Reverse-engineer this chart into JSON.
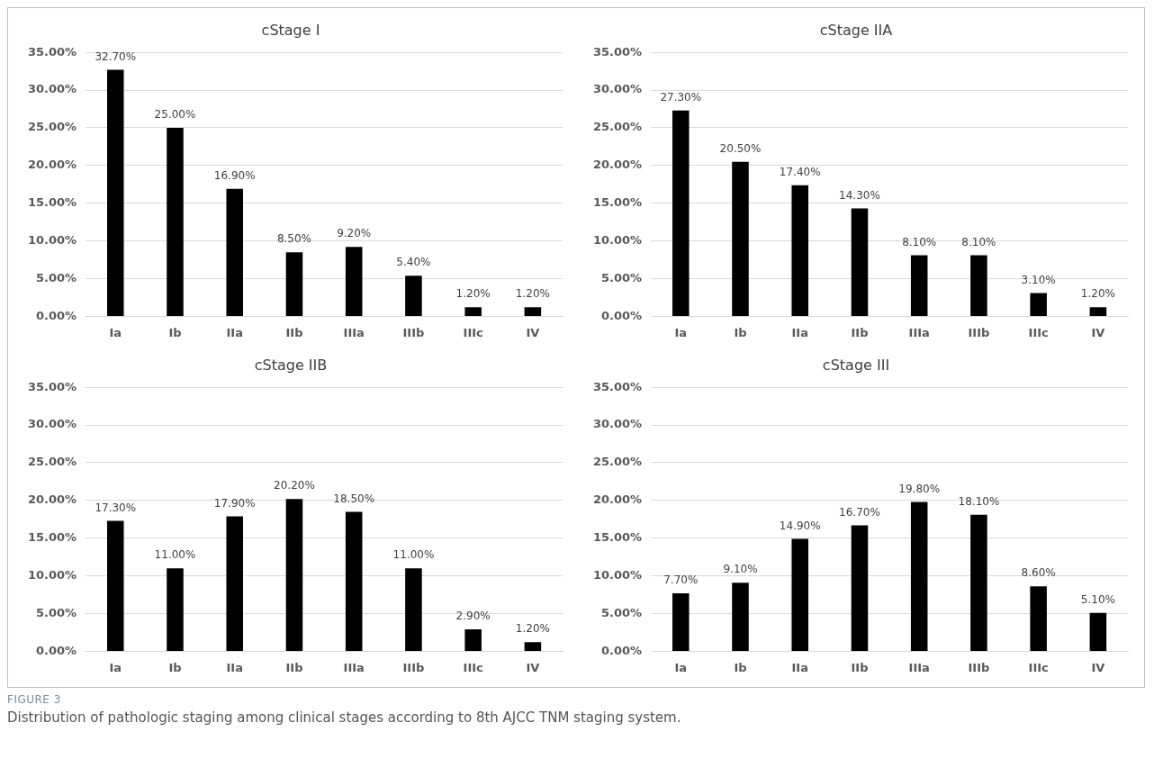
{
  "chart_data": [
    {
      "type": "bar",
      "title": "cStage I",
      "categories": [
        "Ia",
        "Ib",
        "IIa",
        "IIb",
        "IIIa",
        "IIIb",
        "IIIc",
        "IV"
      ],
      "values": [
        32.7,
        25.0,
        16.9,
        8.5,
        9.2,
        5.4,
        1.2,
        1.2
      ],
      "value_labels": [
        "32.70%",
        "25.00%",
        "16.90%",
        "8.50%",
        "9.20%",
        "5.40%",
        "1.20%",
        "1.20%"
      ],
      "color": "#000000",
      "ylim": [
        0,
        35
      ],
      "yticks": [
        {
          "value": 0,
          "label": "0.00%"
        },
        {
          "value": 5,
          "label": "5.00%"
        },
        {
          "value": 10,
          "label": "10.00%"
        },
        {
          "value": 15,
          "label": "15.00%"
        },
        {
          "value": 20,
          "label": "20.00%"
        },
        {
          "value": 25,
          "label": "25.00%"
        },
        {
          "value": 30,
          "label": "30.00%"
        },
        {
          "value": 35,
          "label": "35.00%"
        }
      ],
      "grid": "y",
      "legend": false
    },
    {
      "type": "bar",
      "title": "cStage IIA",
      "categories": [
        "Ia",
        "Ib",
        "IIa",
        "IIb",
        "IIIa",
        "IIIb",
        "IIIc",
        "IV"
      ],
      "values": [
        27.3,
        20.5,
        17.4,
        14.3,
        8.1,
        8.1,
        3.1,
        1.2
      ],
      "value_labels": [
        "27.30%",
        "20.50%",
        "17.40%",
        "14.30%",
        "8.10%",
        "8.10%",
        "3.10%",
        "1.20%"
      ],
      "color": "#000000",
      "ylim": [
        0,
        35
      ],
      "yticks": [
        {
          "value": 0,
          "label": "0.00%"
        },
        {
          "value": 5,
          "label": "5.00%"
        },
        {
          "value": 10,
          "label": "10.00%"
        },
        {
          "value": 15,
          "label": "15.00%"
        },
        {
          "value": 20,
          "label": "20.00%"
        },
        {
          "value": 25,
          "label": "25.00%"
        },
        {
          "value": 30,
          "label": "30.00%"
        },
        {
          "value": 35,
          "label": "35.00%"
        }
      ],
      "grid": "y",
      "legend": false
    },
    {
      "type": "bar",
      "title": "cStage IIB",
      "categories": [
        "Ia",
        "Ib",
        "IIa",
        "IIb",
        "IIIa",
        "IIIb",
        "IIIc",
        "IV"
      ],
      "values": [
        17.3,
        11.0,
        17.9,
        20.2,
        18.5,
        11.0,
        2.9,
        1.2
      ],
      "value_labels": [
        "17.30%",
        "11.00%",
        "17.90%",
        "20.20%",
        "18.50%",
        "11.00%",
        "2.90%",
        "1.20%"
      ],
      "color": "#000000",
      "ylim": [
        0,
        35
      ],
      "yticks": [
        {
          "value": 0,
          "label": "0.00%"
        },
        {
          "value": 5,
          "label": "5.00%"
        },
        {
          "value": 10,
          "label": "10.00%"
        },
        {
          "value": 15,
          "label": "15.00%"
        },
        {
          "value": 20,
          "label": "20.00%"
        },
        {
          "value": 25,
          "label": "25.00%"
        },
        {
          "value": 30,
          "label": "30.00%"
        },
        {
          "value": 35,
          "label": "35.00%"
        }
      ],
      "grid": "y",
      "legend": false
    },
    {
      "type": "bar",
      "title": "cStage III",
      "categories": [
        "Ia",
        "Ib",
        "IIa",
        "IIb",
        "IIIa",
        "IIIb",
        "IIIc",
        "IV"
      ],
      "values": [
        7.7,
        9.1,
        14.9,
        16.7,
        19.8,
        18.1,
        8.6,
        5.1
      ],
      "value_labels": [
        "7.70%",
        "9.10%",
        "14.90%",
        "16.70%",
        "19.80%",
        "18.10%",
        "8.60%",
        "5.10%"
      ],
      "color": "#000000",
      "ylim": [
        0,
        35
      ],
      "yticks": [
        {
          "value": 0,
          "label": "0.00%"
        },
        {
          "value": 5,
          "label": "5.00%"
        },
        {
          "value": 10,
          "label": "10.00%"
        },
        {
          "value": 15,
          "label": "15.00%"
        },
        {
          "value": 20,
          "label": "20.00%"
        },
        {
          "value": 25,
          "label": "25.00%"
        },
        {
          "value": 30,
          "label": "30.00%"
        },
        {
          "value": 35,
          "label": "35.00%"
        }
      ],
      "grid": "y",
      "legend": false,
      "annotations": [
        "FIGURE 3",
        "Distribution of pathologic staging among clinical stages according to 8th AJCC TNM staging system."
      ]
    }
  ]
}
